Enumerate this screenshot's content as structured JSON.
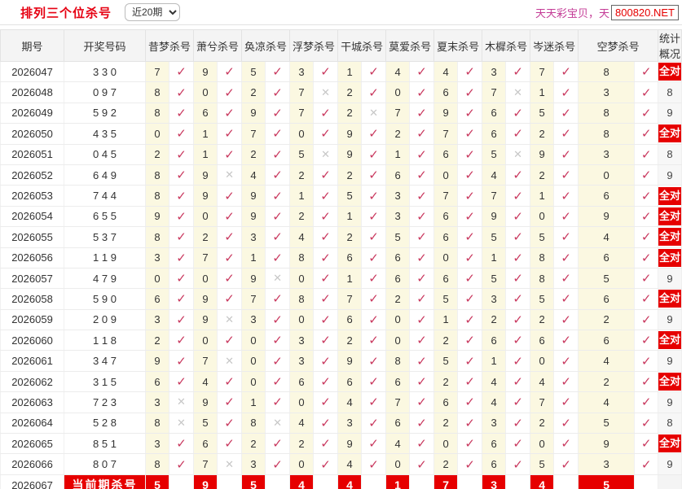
{
  "header": {
    "title": "排列三个位杀号",
    "range_select": {
      "selected": "近20期"
    },
    "promo_text": "天天彩宝贝，天",
    "site_badge": "800820.NET"
  },
  "icons": {
    "check": "✓",
    "cross": "✕"
  },
  "colors": {
    "accent_red": "#e60000",
    "check_red": "#c9395f",
    "cross_gray": "#c7c7c7",
    "cell_yellow": "#fbf8e1",
    "promo_magenta": "#c43b96"
  },
  "table": {
    "columns": {
      "period": "期号",
      "draw": "开奖号码",
      "kills": [
        "昔梦杀号",
        "萧兮杀号",
        "奂凉杀号",
        "浮梦杀号",
        "干城杀号",
        "莫爱杀号",
        "夏末杀号",
        "木樨杀号",
        "岑迷杀号",
        "空梦杀号"
      ],
      "stats": "统计概况"
    },
    "all_correct_label": "全对",
    "rows": [
      {
        "period": "2026047",
        "draw": "3 3 0",
        "kills": [
          [
            7,
            1
          ],
          [
            9,
            1
          ],
          [
            5,
            1
          ],
          [
            3,
            1
          ],
          [
            1,
            1
          ],
          [
            4,
            1
          ],
          [
            4,
            1
          ],
          [
            3,
            1
          ],
          [
            7,
            1
          ],
          [
            8,
            1
          ]
        ],
        "stat": "全对"
      },
      {
        "period": "2026048",
        "draw": "0 9 7",
        "kills": [
          [
            8,
            1
          ],
          [
            0,
            1
          ],
          [
            2,
            1
          ],
          [
            7,
            0
          ],
          [
            2,
            1
          ],
          [
            0,
            1
          ],
          [
            6,
            1
          ],
          [
            7,
            0
          ],
          [
            1,
            1
          ],
          [
            3,
            1
          ]
        ],
        "stat": "8"
      },
      {
        "period": "2026049",
        "draw": "5 9 2",
        "kills": [
          [
            8,
            1
          ],
          [
            6,
            1
          ],
          [
            9,
            1
          ],
          [
            7,
            1
          ],
          [
            2,
            0
          ],
          [
            7,
            1
          ],
          [
            9,
            1
          ],
          [
            6,
            1
          ],
          [
            5,
            1
          ],
          [
            8,
            1
          ]
        ],
        "stat": "9"
      },
      {
        "period": "2026050",
        "draw": "4 3 5",
        "kills": [
          [
            0,
            1
          ],
          [
            1,
            1
          ],
          [
            7,
            1
          ],
          [
            0,
            1
          ],
          [
            9,
            1
          ],
          [
            2,
            1
          ],
          [
            7,
            1
          ],
          [
            6,
            1
          ],
          [
            2,
            1
          ],
          [
            8,
            1
          ]
        ],
        "stat": "全对"
      },
      {
        "period": "2026051",
        "draw": "0 4 5",
        "kills": [
          [
            2,
            1
          ],
          [
            1,
            1
          ],
          [
            2,
            1
          ],
          [
            5,
            0
          ],
          [
            9,
            1
          ],
          [
            1,
            1
          ],
          [
            6,
            1
          ],
          [
            5,
            0
          ],
          [
            9,
            1
          ],
          [
            3,
            1
          ]
        ],
        "stat": "8"
      },
      {
        "period": "2026052",
        "draw": "6 4 9",
        "kills": [
          [
            8,
            1
          ],
          [
            9,
            0
          ],
          [
            4,
            1
          ],
          [
            2,
            1
          ],
          [
            2,
            1
          ],
          [
            6,
            1
          ],
          [
            0,
            1
          ],
          [
            4,
            1
          ],
          [
            2,
            1
          ],
          [
            0,
            1
          ]
        ],
        "stat": "9"
      },
      {
        "period": "2026053",
        "draw": "7 4 4",
        "kills": [
          [
            8,
            1
          ],
          [
            9,
            1
          ],
          [
            9,
            1
          ],
          [
            1,
            1
          ],
          [
            5,
            1
          ],
          [
            3,
            1
          ],
          [
            7,
            1
          ],
          [
            7,
            1
          ],
          [
            1,
            1
          ],
          [
            6,
            1
          ]
        ],
        "stat": "全对"
      },
      {
        "period": "2026054",
        "draw": "6 5 5",
        "kills": [
          [
            9,
            1
          ],
          [
            0,
            1
          ],
          [
            9,
            1
          ],
          [
            2,
            1
          ],
          [
            1,
            1
          ],
          [
            3,
            1
          ],
          [
            6,
            1
          ],
          [
            9,
            1
          ],
          [
            0,
            1
          ],
          [
            9,
            1
          ]
        ],
        "stat": "全对"
      },
      {
        "period": "2026055",
        "draw": "5 3 7",
        "kills": [
          [
            8,
            1
          ],
          [
            2,
            1
          ],
          [
            3,
            1
          ],
          [
            4,
            1
          ],
          [
            2,
            1
          ],
          [
            5,
            1
          ],
          [
            6,
            1
          ],
          [
            5,
            1
          ],
          [
            5,
            1
          ],
          [
            4,
            1
          ]
        ],
        "stat": "全对"
      },
      {
        "period": "2026056",
        "draw": "1 1 9",
        "kills": [
          [
            3,
            1
          ],
          [
            7,
            1
          ],
          [
            1,
            1
          ],
          [
            8,
            1
          ],
          [
            6,
            1
          ],
          [
            6,
            1
          ],
          [
            0,
            1
          ],
          [
            1,
            1
          ],
          [
            8,
            1
          ],
          [
            6,
            1
          ]
        ],
        "stat": "全对"
      },
      {
        "period": "2026057",
        "draw": "4 7 9",
        "kills": [
          [
            0,
            1
          ],
          [
            0,
            1
          ],
          [
            9,
            0
          ],
          [
            0,
            1
          ],
          [
            1,
            1
          ],
          [
            6,
            1
          ],
          [
            6,
            1
          ],
          [
            5,
            1
          ],
          [
            8,
            1
          ],
          [
            5,
            1
          ]
        ],
        "stat": "9"
      },
      {
        "period": "2026058",
        "draw": "5 9 0",
        "kills": [
          [
            6,
            1
          ],
          [
            9,
            1
          ],
          [
            7,
            1
          ],
          [
            8,
            1
          ],
          [
            7,
            1
          ],
          [
            2,
            1
          ],
          [
            5,
            1
          ],
          [
            3,
            1
          ],
          [
            5,
            1
          ],
          [
            6,
            1
          ]
        ],
        "stat": "全对"
      },
      {
        "period": "2026059",
        "draw": "2 0 9",
        "kills": [
          [
            3,
            1
          ],
          [
            9,
            0
          ],
          [
            3,
            1
          ],
          [
            0,
            1
          ],
          [
            6,
            1
          ],
          [
            0,
            1
          ],
          [
            1,
            1
          ],
          [
            2,
            1
          ],
          [
            2,
            1
          ],
          [
            2,
            1
          ]
        ],
        "stat": "9"
      },
      {
        "period": "2026060",
        "draw": "1 1 8",
        "kills": [
          [
            2,
            1
          ],
          [
            0,
            1
          ],
          [
            0,
            1
          ],
          [
            3,
            1
          ],
          [
            2,
            1
          ],
          [
            0,
            1
          ],
          [
            2,
            1
          ],
          [
            6,
            1
          ],
          [
            6,
            1
          ],
          [
            6,
            1
          ]
        ],
        "stat": "全对"
      },
      {
        "period": "2026061",
        "draw": "3 4 7",
        "kills": [
          [
            9,
            1
          ],
          [
            7,
            0
          ],
          [
            0,
            1
          ],
          [
            3,
            1
          ],
          [
            9,
            1
          ],
          [
            8,
            1
          ],
          [
            5,
            1
          ],
          [
            1,
            1
          ],
          [
            0,
            1
          ],
          [
            4,
            1
          ]
        ],
        "stat": "9"
      },
      {
        "period": "2026062",
        "draw": "3 1 5",
        "kills": [
          [
            6,
            1
          ],
          [
            4,
            1
          ],
          [
            0,
            1
          ],
          [
            6,
            1
          ],
          [
            6,
            1
          ],
          [
            6,
            1
          ],
          [
            2,
            1
          ],
          [
            4,
            1
          ],
          [
            4,
            1
          ],
          [
            2,
            1
          ]
        ],
        "stat": "全对"
      },
      {
        "period": "2026063",
        "draw": "7 2 3",
        "kills": [
          [
            3,
            0
          ],
          [
            9,
            1
          ],
          [
            1,
            1
          ],
          [
            0,
            1
          ],
          [
            4,
            1
          ],
          [
            7,
            1
          ],
          [
            6,
            1
          ],
          [
            4,
            1
          ],
          [
            7,
            1
          ],
          [
            4,
            1
          ]
        ],
        "stat": "9"
      },
      {
        "period": "2026064",
        "draw": "5 2 8",
        "kills": [
          [
            8,
            0
          ],
          [
            5,
            1
          ],
          [
            8,
            0
          ],
          [
            4,
            1
          ],
          [
            3,
            1
          ],
          [
            6,
            1
          ],
          [
            2,
            1
          ],
          [
            3,
            1
          ],
          [
            2,
            1
          ],
          [
            5,
            1
          ]
        ],
        "stat": "8"
      },
      {
        "period": "2026065",
        "draw": "8 5 1",
        "kills": [
          [
            3,
            1
          ],
          [
            6,
            1
          ],
          [
            2,
            1
          ],
          [
            2,
            1
          ],
          [
            9,
            1
          ],
          [
            4,
            1
          ],
          [
            0,
            1
          ],
          [
            6,
            1
          ],
          [
            0,
            1
          ],
          [
            9,
            1
          ]
        ],
        "stat": "全对"
      },
      {
        "period": "2026066",
        "draw": "8 0 7",
        "kills": [
          [
            8,
            1
          ],
          [
            7,
            0
          ],
          [
            3,
            1
          ],
          [
            0,
            1
          ],
          [
            4,
            1
          ],
          [
            0,
            1
          ],
          [
            2,
            1
          ],
          [
            6,
            1
          ],
          [
            5,
            1
          ],
          [
            3,
            1
          ]
        ],
        "stat": "9"
      }
    ],
    "current_row": {
      "period": "2026067",
      "label": "当前期杀号",
      "kills": [
        5,
        9,
        5,
        4,
        4,
        1,
        7,
        3,
        4,
        5
      ],
      "stat": ""
    }
  }
}
